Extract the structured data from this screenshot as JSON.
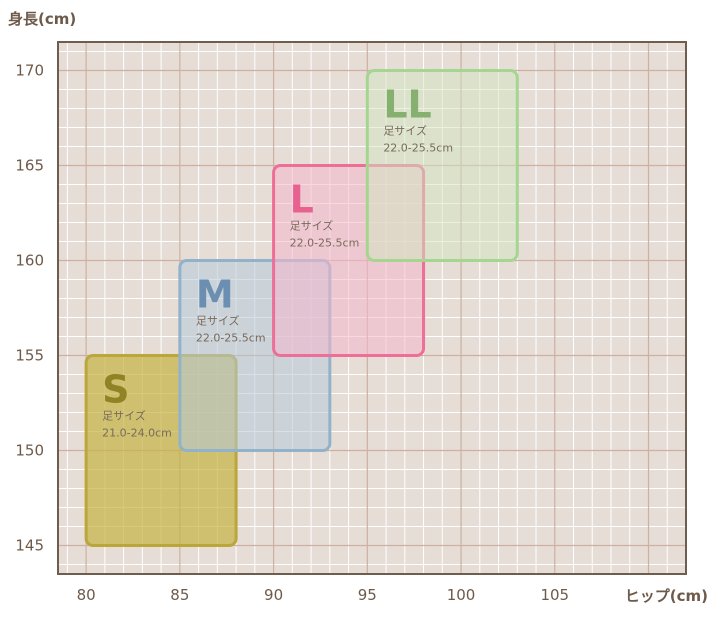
{
  "chart_data": {
    "type": "box-regions",
    "ylabel": "身長(cm)",
    "xlabel": "ヒップ(cm)",
    "x_ticks": [
      "80",
      "85",
      "90",
      "95",
      "100",
      "105"
    ],
    "y_ticks": [
      "170",
      "165",
      "160",
      "155",
      "150",
      "145"
    ],
    "xlim": [
      78.5,
      112
    ],
    "ylim": [
      143.5,
      171.5
    ],
    "grid": true,
    "colors": {
      "background": "#e6ddd7",
      "major_grid": "#cdb1a0",
      "minor_grid": "#ffffff",
      "frame": "#6f5d50",
      "axis_text": "#6e5a4a"
    },
    "regions": [
      {
        "label": "S",
        "foot_size_label": "足サイズ",
        "foot_size": "21.0-24.0cm",
        "x": [
          80,
          88
        ],
        "y": [
          145,
          155
        ],
        "stroke": "#bba63a",
        "fill": "#c5b447",
        "fill_opacity": 0.72,
        "letter_color": "#8f8325"
      },
      {
        "label": "M",
        "foot_size_label": "足サイズ",
        "foot_size": "22.0-25.5cm",
        "x": [
          85,
          93
        ],
        "y": [
          150,
          160
        ],
        "stroke": "#92b2ca",
        "fill": "#b5c8d9",
        "fill_opacity": 0.55,
        "letter_color": "#6b8fb0"
      },
      {
        "label": "L",
        "foot_size_label": "足サイズ",
        "foot_size": "22.0-25.5cm",
        "x": [
          90,
          98
        ],
        "y": [
          155,
          165
        ],
        "stroke": "#ee6e98",
        "fill": "#f4b7cc",
        "fill_opacity": 0.55,
        "letter_color": "#e8628f"
      },
      {
        "label": "LL",
        "foot_size_label": "足サイズ",
        "foot_size": "22.0-25.5cm",
        "x": [
          95,
          103
        ],
        "y": [
          160,
          170
        ],
        "stroke": "#a5d690",
        "fill": "#cfe6c0",
        "fill_opacity": 0.5,
        "letter_color": "#86b070"
      }
    ]
  }
}
